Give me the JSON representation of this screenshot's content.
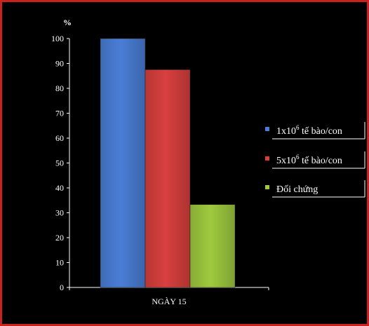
{
  "chart_data": {
    "type": "bar",
    "title": "",
    "xlabel": "",
    "ylabel": "%",
    "categories": [
      "NGÀY 15"
    ],
    "ylim": [
      0,
      100
    ],
    "yticks": [
      0,
      10,
      20,
      30,
      40,
      50,
      60,
      70,
      80,
      90,
      100
    ],
    "grid": false,
    "legend_position": "right",
    "series": [
      {
        "name": "1x10⁶ tế bào/con",
        "name_parts": {
          "pre": "1x10",
          "sup": "6",
          "post": " tế bào/con"
        },
        "values": [
          100
        ],
        "color": "#4a7ed6"
      },
      {
        "name": "5x10⁶ tế bào/con",
        "name_parts": {
          "pre": "5x10",
          "sup": "6",
          "post": " tế bào/con"
        },
        "values": [
          87.5
        ],
        "color": "#d8403e"
      },
      {
        "name": "Đối chứng",
        "name_parts": {
          "pre": "Đối chứng",
          "sup": "",
          "post": ""
        },
        "values": [
          33.3
        ],
        "color": "#9fca3e"
      }
    ]
  },
  "colors": {
    "background": "#000000",
    "border": "#c8231c",
    "axis": "#ffffff",
    "text": "#ffffff"
  }
}
